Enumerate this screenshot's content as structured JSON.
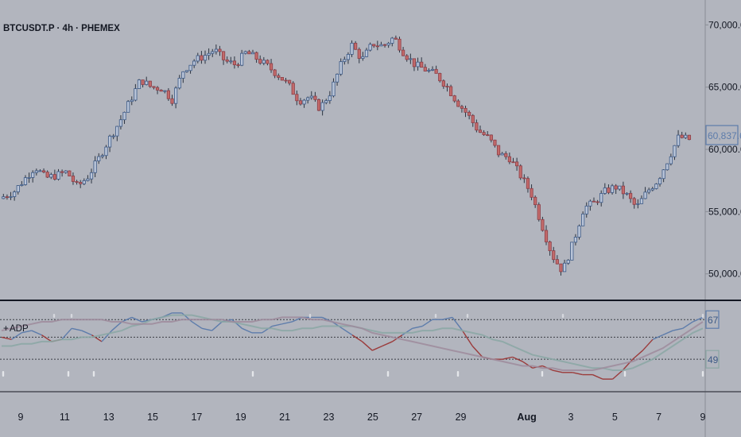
{
  "chart_data": [
    {
      "type": "candlestick",
      "title": "BTCUSDT.P · 4h · PHEMEX",
      "ylim": [
        48000,
        72000
      ],
      "y_ticks": [
        "70,000.0",
        "65,000.0",
        "60,000.0",
        "55,000.0",
        "50,000.0"
      ],
      "y_tick_values": [
        70000,
        65000,
        60000,
        55000,
        50000
      ],
      "last_price": "60,837.6",
      "last_price_value": 60837.6,
      "x_ticks": [
        "9",
        "11",
        "13",
        "15",
        "17",
        "19",
        "21",
        "23",
        "25",
        "27",
        "29",
        "Aug",
        "3",
        "5",
        "7",
        "9"
      ],
      "x_tick_day_index": [
        0,
        2,
        4,
        6,
        8,
        10,
        12,
        14,
        16,
        18,
        20,
        23,
        25,
        27,
        29,
        31
      ],
      "candles_per_day": 6,
      "close_path": [
        [
          0,
          56200
        ],
        [
          1,
          56600
        ],
        [
          2,
          57600
        ],
        [
          3,
          58600
        ],
        [
          4,
          57700
        ],
        [
          5,
          57900
        ],
        [
          6,
          58200
        ],
        [
          7,
          57000
        ],
        [
          8,
          57800
        ],
        [
          9,
          59200
        ],
        [
          10,
          60800
        ],
        [
          11,
          62200
        ],
        [
          12,
          63900
        ],
        [
          13,
          65600
        ],
        [
          14,
          65000
        ],
        [
          15,
          64900
        ],
        [
          16,
          64000
        ],
        [
          17,
          66300
        ],
        [
          18,
          67100
        ],
        [
          19,
          67500
        ],
        [
          20,
          68000
        ],
        [
          21,
          67100
        ],
        [
          22,
          66800
        ],
        [
          23,
          67800
        ],
        [
          24,
          67300
        ],
        [
          25,
          66700
        ],
        [
          26,
          66000
        ],
        [
          27,
          65200
        ],
        [
          28,
          63900
        ],
        [
          29,
          64200
        ],
        [
          30,
          63300
        ],
        [
          31,
          64600
        ],
        [
          32,
          66800
        ],
        [
          33,
          68400
        ],
        [
          34,
          67200
        ],
        [
          35,
          68500
        ],
        [
          36,
          68300
        ],
        [
          37,
          69000
        ],
        [
          38,
          67700
        ],
        [
          39,
          66800
        ],
        [
          40,
          66400
        ],
        [
          41,
          66000
        ],
        [
          42,
          65100
        ],
        [
          43,
          63800
        ],
        [
          44,
          62800
        ],
        [
          45,
          61500
        ],
        [
          46,
          60900
        ],
        [
          47,
          59600
        ],
        [
          48,
          59300
        ],
        [
          49,
          57900
        ],
        [
          50,
          56500
        ],
        [
          51,
          54000
        ],
        [
          52,
          51500
        ],
        [
          53,
          50200
        ],
        [
          54,
          52500
        ],
        [
          55,
          55300
        ],
        [
          56,
          55700
        ],
        [
          57,
          56600
        ],
        [
          58,
          57000
        ],
        [
          59,
          56400
        ],
        [
          60,
          55300
        ],
        [
          61,
          56600
        ],
        [
          62,
          57500
        ],
        [
          63,
          59200
        ],
        [
          64,
          61000
        ],
        [
          65,
          60800
        ]
      ]
    },
    {
      "type": "line",
      "title": "ADP",
      "title_prefix": "+",
      "ylim": [
        35,
        75
      ],
      "levels": [
        67,
        59,
        49
      ],
      "right_labels": [
        "67",
        "49"
      ],
      "series": [
        {
          "color": "#5d7cab",
          "down_color": "#9b3b3b",
          "values": [
            59,
            58,
            61,
            62,
            60,
            57,
            58,
            63,
            62,
            60,
            57,
            62,
            66,
            68,
            66,
            67,
            68,
            70,
            70,
            66,
            63,
            62,
            66,
            67,
            63,
            61,
            61,
            64,
            65,
            66,
            68,
            68,
            68,
            66,
            63,
            60,
            57,
            53,
            55,
            57,
            60,
            63,
            64,
            67,
            67,
            68,
            62,
            55,
            50,
            49,
            49,
            50,
            48,
            45,
            46,
            44,
            43,
            43,
            42,
            42,
            40,
            40,
            44,
            49,
            53,
            58,
            60,
            62,
            63,
            66,
            68
          ]
        },
        {
          "color": "#8aa7a4",
          "values": [
            55,
            55,
            56,
            56,
            57,
            57,
            58,
            58,
            59,
            59,
            60,
            61,
            62,
            64,
            65,
            67,
            68,
            69,
            69,
            69,
            68,
            67,
            66,
            66,
            65,
            64,
            63,
            63,
            62,
            62,
            63,
            63,
            64,
            64,
            64,
            64,
            63,
            62,
            61,
            61,
            61,
            61,
            62,
            62,
            63,
            63,
            62,
            61,
            60,
            58,
            57,
            55,
            53,
            51,
            50,
            49,
            48,
            47,
            46,
            45,
            45,
            44,
            44,
            45,
            47,
            49,
            52,
            55,
            58,
            61,
            63
          ]
        },
        {
          "color": "#9e8b9c",
          "values": [
            62,
            63,
            64,
            65,
            66,
            66,
            67,
            67,
            67,
            67,
            67,
            66,
            66,
            65,
            65,
            65,
            66,
            66,
            67,
            67,
            67,
            67,
            67,
            66,
            66,
            66,
            67,
            67,
            68,
            68,
            68,
            67,
            67,
            66,
            65,
            64,
            63,
            61,
            60,
            59,
            58,
            57,
            56,
            55,
            54,
            53,
            52,
            51,
            50,
            49,
            48,
            47,
            46,
            46,
            45,
            45,
            44,
            44,
            44,
            44,
            45,
            46,
            47,
            48,
            50,
            52,
            54,
            57,
            60,
            63,
            66
          ]
        }
      ]
    }
  ]
}
